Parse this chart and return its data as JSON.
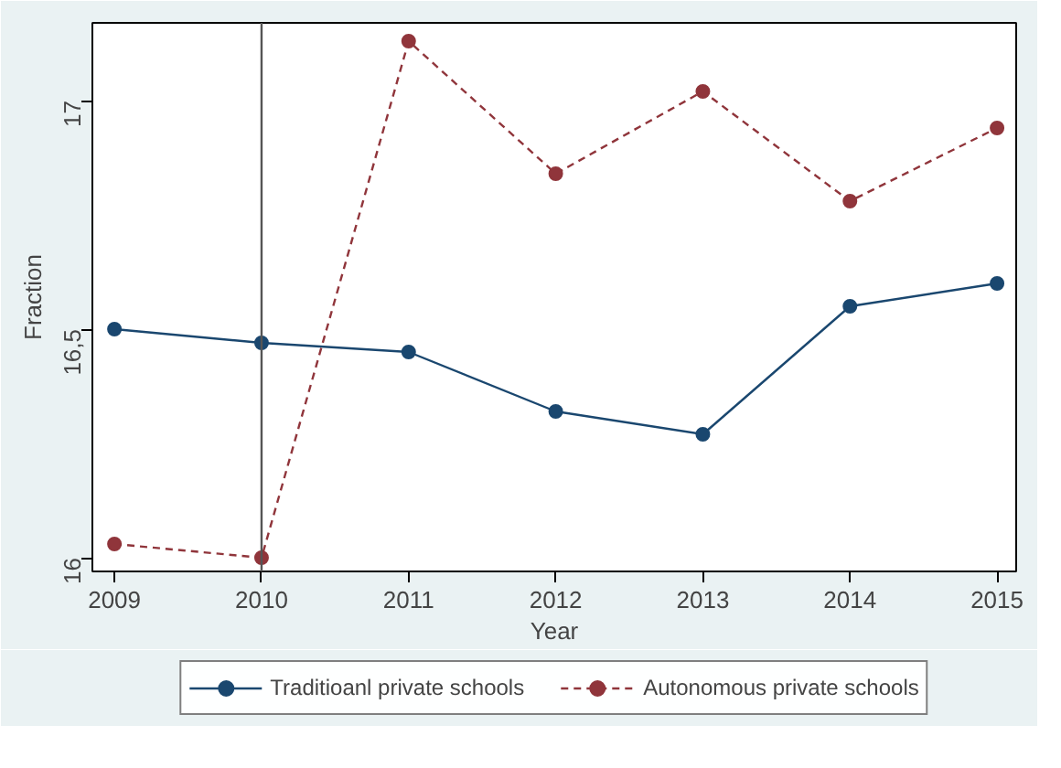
{
  "chart_data": {
    "type": "line",
    "xlabel": "Year",
    "ylabel": "Fraction",
    "x": [
      2009,
      2010,
      2011,
      2012,
      2013,
      2014,
      2015
    ],
    "xlim": [
      2008.85,
      2015.13
    ],
    "xticks": [
      2009,
      2010,
      2011,
      2012,
      2013,
      2014,
      2015
    ],
    "ylim": [
      15.97,
      17.17
    ],
    "yticks": [
      {
        "value": 16,
        "label": "16"
      },
      {
        "value": 16.5,
        "label": "16,5"
      },
      {
        "value": 17,
        "label": "17"
      }
    ],
    "series": [
      {
        "name": "Traditioanl private schools",
        "color": "#1a476f",
        "line_style": "solid",
        "values": [
          16.5,
          16.47,
          16.45,
          16.32,
          16.27,
          16.55,
          16.6
        ]
      },
      {
        "name": "Autonomous private schools",
        "color": "#90353b",
        "line_style": "dashed",
        "values": [
          16.03,
          16.0,
          17.13,
          16.84,
          17.02,
          16.78,
          16.94
        ]
      }
    ],
    "marker": "circle",
    "grid": false,
    "legend": "bottom",
    "ref_lines": [
      {
        "axis": "x",
        "value": 2010,
        "color": "#555555"
      }
    ]
  }
}
